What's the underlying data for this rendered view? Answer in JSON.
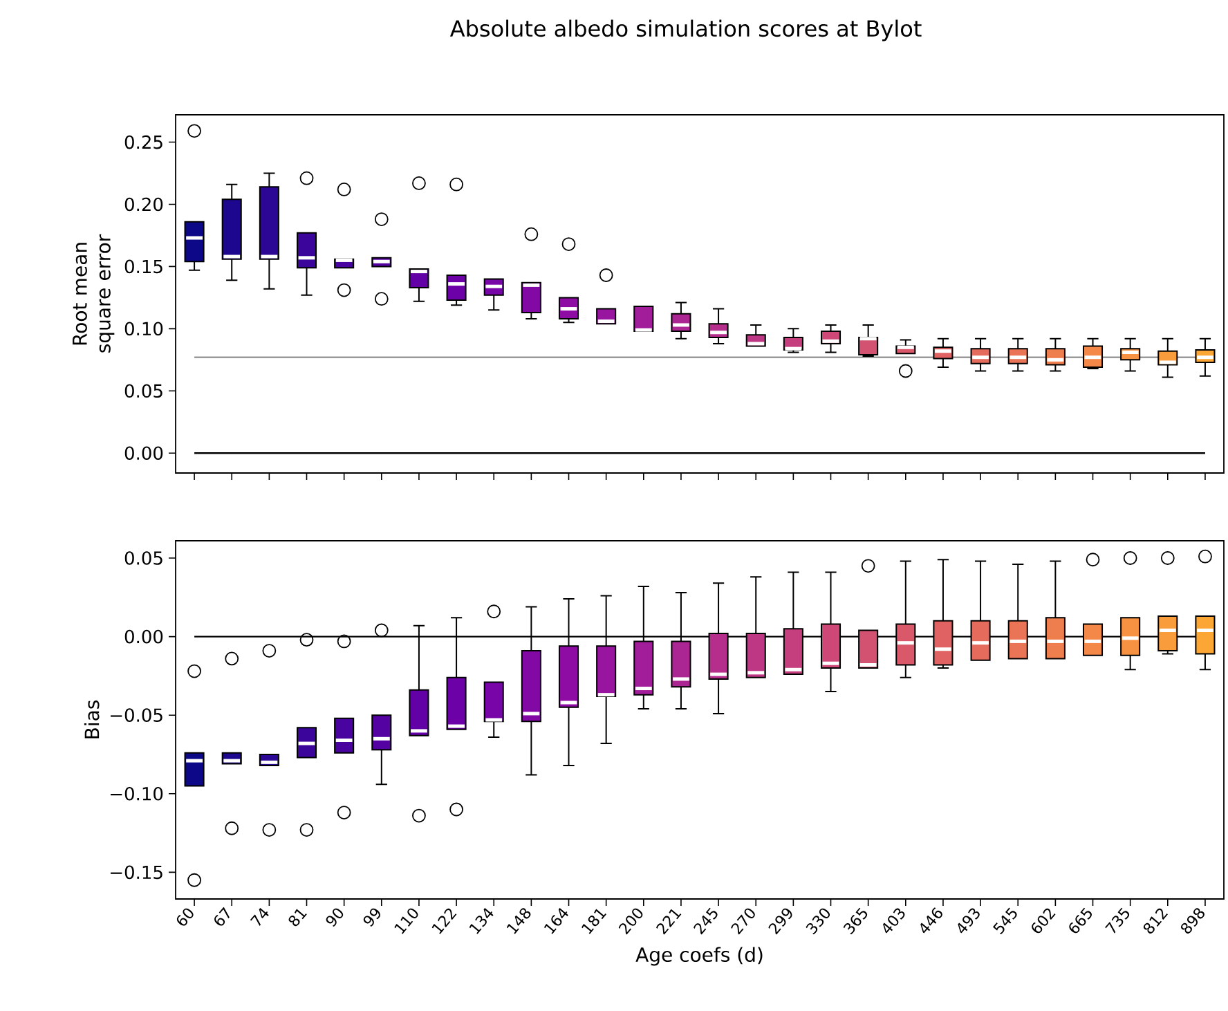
{
  "chart_data": [
    {
      "type": "box",
      "title": "Absolute albedo simulation scores at Bylot",
      "ylabel": "Root mean square error",
      "categories": [
        "60",
        "67",
        "74",
        "81",
        "90",
        "99",
        "110",
        "122",
        "134",
        "148",
        "164",
        "181",
        "200",
        "221",
        "245",
        "270",
        "299",
        "330",
        "365",
        "403",
        "446",
        "493",
        "545",
        "602",
        "665",
        "735",
        "812",
        "898"
      ],
      "colors": [
        "#0d0887",
        "#1d078e",
        "#2c0694",
        "#3b049b",
        "#49039f",
        "#5502a2",
        "#6101a6",
        "#6d01a8",
        "#7805a7",
        "#8309a5",
        "#8e0ca4",
        "#98159f",
        "#a21d99",
        "#ac2693",
        "#b52e8c",
        "#bd3785",
        "#c53f7e",
        "#cd4877",
        "#d35171",
        "#d9596a",
        "#e06263",
        "#e56b5d",
        "#ea7556",
        "#ef7e4f",
        "#f38849",
        "#f69242",
        "#f99c3c",
        "#fca636"
      ],
      "boxes": [
        {
          "low": 0.147,
          "q1": 0.154,
          "median": 0.173,
          "q3": 0.186,
          "high": 0.186,
          "outliers": [
            0.259
          ]
        },
        {
          "low": 0.139,
          "q1": 0.156,
          "median": 0.158,
          "q3": 0.204,
          "high": 0.216
        },
        {
          "low": 0.132,
          "q1": 0.156,
          "median": 0.158,
          "q3": 0.214,
          "high": 0.225
        },
        {
          "low": 0.127,
          "q1": 0.149,
          "median": 0.157,
          "q3": 0.177,
          "high": 0.177,
          "outliers": [
            0.221
          ]
        },
        {
          "low": 0.149,
          "q1": 0.149,
          "median": 0.155,
          "q3": 0.156,
          "high": 0.156,
          "outliers": [
            0.212,
            0.131
          ]
        },
        {
          "low": 0.15,
          "q1": 0.15,
          "median": 0.154,
          "q3": 0.157,
          "high": 0.157,
          "outliers": [
            0.188,
            0.124
          ]
        },
        {
          "low": 0.122,
          "q1": 0.133,
          "median": 0.146,
          "q3": 0.148,
          "high": 0.148,
          "outliers": [
            0.217
          ]
        },
        {
          "low": 0.119,
          "q1": 0.123,
          "median": 0.136,
          "q3": 0.143,
          "high": 0.143,
          "outliers": [
            0.216
          ]
        },
        {
          "low": 0.115,
          "q1": 0.127,
          "median": 0.134,
          "q3": 0.14,
          "high": 0.14
        },
        {
          "low": 0.108,
          "q1": 0.113,
          "median": 0.135,
          "q3": 0.137,
          "high": 0.137,
          "outliers": [
            0.176
          ]
        },
        {
          "low": 0.105,
          "q1": 0.108,
          "median": 0.116,
          "q3": 0.125,
          "high": 0.125,
          "outliers": [
            0.168
          ]
        },
        {
          "low": 0.104,
          "q1": 0.104,
          "median": 0.106,
          "q3": 0.116,
          "high": 0.116,
          "outliers": [
            0.143
          ]
        },
        {
          "low": 0.098,
          "q1": 0.098,
          "median": 0.099,
          "q3": 0.118,
          "high": 0.118
        },
        {
          "low": 0.092,
          "q1": 0.098,
          "median": 0.103,
          "q3": 0.112,
          "high": 0.121
        },
        {
          "low": 0.088,
          "q1": 0.093,
          "median": 0.097,
          "q3": 0.104,
          "high": 0.116
        },
        {
          "low": 0.086,
          "q1": 0.086,
          "median": 0.088,
          "q3": 0.095,
          "high": 0.103
        },
        {
          "low": 0.081,
          "q1": 0.083,
          "median": 0.084,
          "q3": 0.093,
          "high": 0.1
        },
        {
          "low": 0.081,
          "q1": 0.088,
          "median": 0.09,
          "q3": 0.098,
          "high": 0.103
        },
        {
          "low": 0.078,
          "q1": 0.079,
          "median": 0.092,
          "q3": 0.093,
          "high": 0.103
        },
        {
          "low": 0.08,
          "q1": 0.08,
          "median": 0.085,
          "q3": 0.086,
          "high": 0.091,
          "outliers": [
            0.066
          ]
        },
        {
          "low": 0.069,
          "q1": 0.076,
          "median": 0.082,
          "q3": 0.085,
          "high": 0.092
        },
        {
          "low": 0.066,
          "q1": 0.072,
          "median": 0.077,
          "q3": 0.084,
          "high": 0.092
        },
        {
          "low": 0.066,
          "q1": 0.072,
          "median": 0.077,
          "q3": 0.084,
          "high": 0.092
        },
        {
          "low": 0.066,
          "q1": 0.071,
          "median": 0.075,
          "q3": 0.084,
          "high": 0.092
        },
        {
          "low": 0.068,
          "q1": 0.069,
          "median": 0.077,
          "q3": 0.086,
          "high": 0.092
        },
        {
          "low": 0.066,
          "q1": 0.075,
          "median": 0.081,
          "q3": 0.084,
          "high": 0.092
        },
        {
          "low": 0.061,
          "q1": 0.071,
          "median": 0.073,
          "q3": 0.082,
          "high": 0.092
        },
        {
          "low": 0.062,
          "q1": 0.073,
          "median": 0.077,
          "q3": 0.083,
          "high": 0.092
        }
      ],
      "ylim": [
        -0.016,
        0.272
      ],
      "yticks": [
        {
          "value": 0,
          "label": "0.00"
        },
        {
          "value": 0.05,
          "label": "0.05"
        },
        {
          "value": 0.1,
          "label": "0.10"
        },
        {
          "value": 0.15,
          "label": "0.15"
        },
        {
          "value": 0.2,
          "label": "0.20"
        },
        {
          "value": 0.25,
          "label": "0.25"
        }
      ],
      "ref_lines": [
        {
          "axis": "y",
          "value": 0.077,
          "color": "#999999"
        },
        {
          "axis": "y",
          "value": 0,
          "color": "#000000"
        }
      ],
      "tick_labels": "y"
    },
    {
      "type": "box",
      "xlabel": "Age coefs (d)",
      "ylabel": "Bias",
      "categories": [
        "60",
        "67",
        "74",
        "81",
        "90",
        "99",
        "110",
        "122",
        "134",
        "148",
        "164",
        "181",
        "200",
        "221",
        "245",
        "270",
        "299",
        "330",
        "365",
        "403",
        "446",
        "493",
        "545",
        "602",
        "665",
        "735",
        "812",
        "898"
      ],
      "colors": [
        "#0d0887",
        "#1d078e",
        "#2c0694",
        "#3b049b",
        "#49039f",
        "#5502a2",
        "#6101a6",
        "#6d01a8",
        "#7805a7",
        "#8309a5",
        "#8e0ca4",
        "#98159f",
        "#a21d99",
        "#ac2693",
        "#b52e8c",
        "#bd3785",
        "#c53f7e",
        "#cd4877",
        "#d35171",
        "#d9596a",
        "#e06263",
        "#e56b5d",
        "#ea7556",
        "#ef7e4f",
        "#f38849",
        "#f69242",
        "#f99c3c",
        "#fca636"
      ],
      "boxes": [
        {
          "low": -0.095,
          "q1": -0.095,
          "median": -0.079,
          "q3": -0.074,
          "high": -0.074,
          "outliers": [
            -0.022,
            -0.155
          ]
        },
        {
          "low": -0.081,
          "q1": -0.081,
          "median": -0.079,
          "q3": -0.074,
          "high": -0.074,
          "outliers": [
            -0.014,
            -0.122
          ]
        },
        {
          "low": -0.082,
          "q1": -0.082,
          "median": -0.08,
          "q3": -0.075,
          "high": -0.075,
          "outliers": [
            -0.009,
            -0.123
          ]
        },
        {
          "low": -0.077,
          "q1": -0.077,
          "median": -0.068,
          "q3": -0.058,
          "high": -0.058,
          "outliers": [
            -0.002,
            -0.123
          ]
        },
        {
          "low": -0.074,
          "q1": -0.074,
          "median": -0.066,
          "q3": -0.052,
          "high": -0.052,
          "outliers": [
            -0.003,
            -0.112
          ]
        },
        {
          "low": -0.094,
          "q1": -0.072,
          "median": -0.065,
          "q3": -0.05,
          "high": -0.05,
          "outliers": [
            0.004
          ]
        },
        {
          "low": -0.063,
          "q1": -0.063,
          "median": -0.06,
          "q3": -0.034,
          "high": 0.007,
          "outliers": [
            -0.114
          ]
        },
        {
          "low": -0.059,
          "q1": -0.059,
          "median": -0.057,
          "q3": -0.026,
          "high": 0.012,
          "outliers": [
            -0.11
          ]
        },
        {
          "low": -0.064,
          "q1": -0.054,
          "median": -0.053,
          "q3": -0.029,
          "high": -0.029,
          "outliers": [
            0.016
          ]
        },
        {
          "low": -0.088,
          "q1": -0.054,
          "median": -0.049,
          "q3": -0.009,
          "high": 0.019
        },
        {
          "low": -0.082,
          "q1": -0.045,
          "median": -0.042,
          "q3": -0.006,
          "high": 0.024
        },
        {
          "low": -0.068,
          "q1": -0.038,
          "median": -0.037,
          "q3": -0.006,
          "high": 0.026
        },
        {
          "low": -0.046,
          "q1": -0.037,
          "median": -0.033,
          "q3": -0.003,
          "high": 0.032
        },
        {
          "low": -0.046,
          "q1": -0.032,
          "median": -0.027,
          "q3": -0.003,
          "high": 0.028
        },
        {
          "low": -0.049,
          "q1": -0.027,
          "median": -0.024,
          "q3": 0.002,
          "high": 0.034
        },
        {
          "low": -0.026,
          "q1": -0.026,
          "median": -0.023,
          "q3": 0.002,
          "high": 0.038
        },
        {
          "low": -0.024,
          "q1": -0.024,
          "median": -0.021,
          "q3": 0.005,
          "high": 0.041
        },
        {
          "low": -0.035,
          "q1": -0.02,
          "median": -0.017,
          "q3": 0.008,
          "high": 0.041
        },
        {
          "low": -0.02,
          "q1": -0.02,
          "median": -0.018,
          "q3": 0.004,
          "high": 0.004,
          "outliers": [
            0.045
          ]
        },
        {
          "low": -0.026,
          "q1": -0.018,
          "median": -0.004,
          "q3": 0.008,
          "high": 0.048
        },
        {
          "low": -0.02,
          "q1": -0.018,
          "median": -0.008,
          "q3": 0.01,
          "high": 0.049
        },
        {
          "low": -0.015,
          "q1": -0.015,
          "median": -0.004,
          "q3": 0.01,
          "high": 0.048
        },
        {
          "low": -0.014,
          "q1": -0.014,
          "median": -0.003,
          "q3": 0.01,
          "high": 0.046
        },
        {
          "low": -0.014,
          "q1": -0.014,
          "median": -0.003,
          "q3": 0.012,
          "high": 0.048
        },
        {
          "low": -0.012,
          "q1": -0.012,
          "median": -0.003,
          "q3": 0.008,
          "high": 0.008,
          "outliers": [
            0.049
          ]
        },
        {
          "low": -0.021,
          "q1": -0.012,
          "median": -0.001,
          "q3": 0.012,
          "high": 0.012,
          "outliers": [
            0.05
          ]
        },
        {
          "low": -0.011,
          "q1": -0.009,
          "median": 0.004,
          "q3": 0.013,
          "high": 0.013,
          "outliers": [
            0.05
          ]
        },
        {
          "low": -0.021,
          "q1": -0.011,
          "median": 0.004,
          "q3": 0.013,
          "high": 0.013,
          "outliers": [
            0.051
          ]
        }
      ],
      "ylim": [
        -0.167,
        0.061
      ],
      "yticks": [
        {
          "value": -0.15,
          "label": "−0.15"
        },
        {
          "value": -0.1,
          "label": "−0.10"
        },
        {
          "value": -0.05,
          "label": "−0.05"
        },
        {
          "value": 0,
          "label": "0.00"
        },
        {
          "value": 0.05,
          "label": "0.05"
        }
      ],
      "ref_lines": [
        {
          "axis": "y",
          "value": 0,
          "color": "#000000"
        }
      ]
    }
  ]
}
